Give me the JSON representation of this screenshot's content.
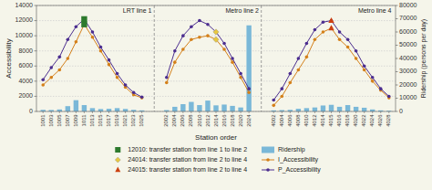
{
  "chart_data": {
    "type": "bar",
    "xlabel": "Station order",
    "ylabel": "Accessibility",
    "y2label": "Ridership (persons per day)",
    "categories": [
      "1001",
      "1003",
      "1005",
      "1007",
      "1009",
      "1011",
      "1013",
      "1015",
      "1017",
      "1019",
      "1021",
      "1023",
      "1025",
      null,
      null,
      "2002",
      "2004",
      "2006",
      "2008",
      "2010",
      "2012",
      "2014",
      "2016",
      "2018",
      "2020",
      "2024",
      null,
      null,
      "4002",
      "4004",
      "4006",
      "4008",
      "4010",
      "4012",
      "4014",
      "4015",
      "4016",
      "4018",
      "4020",
      "4022",
      "4024",
      "4026",
      "4028"
    ],
    "series": [
      {
        "name": "Ridership",
        "type": "bar",
        "axis": "y2",
        "color": "#7ab8d8",
        "values": [
          1200,
          1100,
          1500,
          4000,
          8500,
          4800,
          2500,
          1800,
          2000,
          2500,
          1900,
          1200,
          800,
          null,
          null,
          1000,
          3500,
          5500,
          7200,
          4800,
          8200,
          4600,
          5200,
          4200,
          3000,
          65000,
          null,
          null,
          800,
          1000,
          1200,
          2000,
          2500,
          3000,
          4500,
          5000,
          3500,
          4800,
          3500,
          2800,
          1500,
          800,
          500
        ]
      },
      {
        "name": "I_Accessibility",
        "type": "line",
        "marker": "circle",
        "color": "#d4801a",
        "values": [
          3500,
          4500,
          5500,
          7000,
          9200,
          11500,
          9800,
          8000,
          6200,
          4500,
          3200,
          2200,
          1800,
          null,
          null,
          3800,
          6500,
          8200,
          9500,
          9800,
          10000,
          9500,
          8200,
          6500,
          4500,
          2500,
          null,
          null,
          800,
          2000,
          3800,
          5500,
          7200,
          9500,
          10500,
          11000,
          9500,
          8500,
          7000,
          5500,
          4000,
          2800,
          1800
        ]
      },
      {
        "name": "P_Accessibility",
        "type": "line",
        "marker": "circle",
        "color": "#4b2d8f",
        "values": [
          4200,
          5800,
          7200,
          9500,
          11200,
          12200,
          10500,
          8500,
          6800,
          5000,
          3500,
          2500,
          1900,
          null,
          null,
          4500,
          8000,
          10000,
          11200,
          12000,
          11500,
          10500,
          9000,
          7000,
          5000,
          3000,
          null,
          null,
          1500,
          3000,
          5000,
          7000,
          9000,
          10800,
          11800,
          12000,
          10500,
          9500,
          8000,
          6000,
          4500,
          3000,
          2000
        ]
      }
    ],
    "highlights": [
      {
        "name": "12010: transfer station from line 1 to line 2",
        "category": "1011",
        "color": "#2d7a2d",
        "marker": "square"
      },
      {
        "name": "24014: transfer station from line 2 to line 4",
        "category": "2014",
        "color": "#e8c840",
        "marker": "diamond"
      },
      {
        "name": "24015: transfer station from line 2 to line 4",
        "category": "4015",
        "color": "#cc4010",
        "marker": "triangle"
      }
    ],
    "annotations": [
      "LRT line 1",
      "Metro line 2",
      "Metro line 4"
    ],
    "ylim": [
      0,
      14000
    ],
    "yticks": [
      0,
      2000,
      4000,
      6000,
      8000,
      10000,
      12000,
      14000
    ],
    "y2lim": [
      0,
      80000
    ],
    "y2ticks": [
      0,
      10000,
      20000,
      30000,
      40000,
      50000,
      60000,
      70000,
      80000
    ],
    "grid": true,
    "legend": "bottom"
  }
}
